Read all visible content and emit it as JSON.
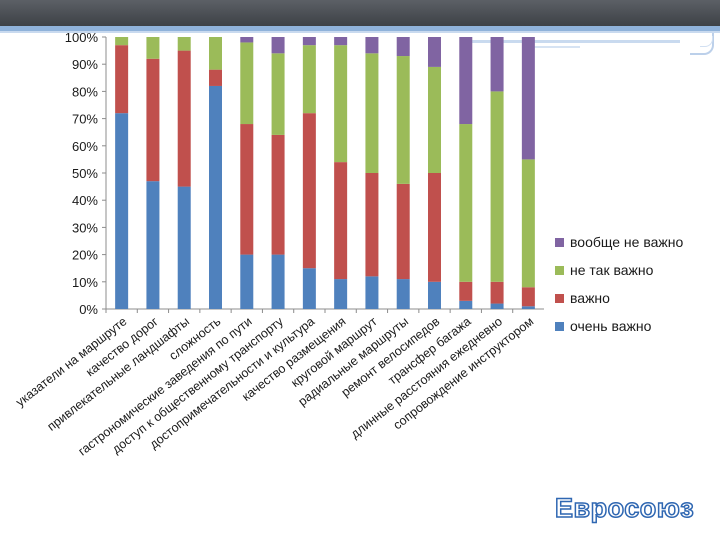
{
  "chart_data": {
    "type": "bar",
    "stacked": true,
    "ylim": [
      0,
      100
    ],
    "yticks": [
      "0%",
      "10%",
      "20%",
      "30%",
      "40%",
      "50%",
      "60%",
      "70%",
      "80%",
      "90%",
      "100%"
    ],
    "categories": [
      "указатели на маршруте",
      "качество дорог",
      "привлекательные ландшафты",
      "сложность",
      "гастрономические заведения по пути",
      "доступ к общественному транспорту",
      "достопримечательности и культура",
      "качество размещения",
      "круговой маршрут",
      "радиальные маршруты",
      "ремонт велосипедов",
      "трансфер багажа",
      "длинные расстояния ежедневно",
      "сопровождение инструктором"
    ],
    "series": [
      {
        "name": "очень важно",
        "color": "#4f81bd",
        "values": [
          72,
          47,
          45,
          82,
          20,
          20,
          15,
          11,
          12,
          11,
          10,
          3,
          2,
          1
        ]
      },
      {
        "name": "важно",
        "color": "#c0504d",
        "values": [
          25,
          45,
          50,
          6,
          48,
          44,
          57,
          43,
          38,
          35,
          40,
          7,
          8,
          7
        ]
      },
      {
        "name": "не так важно",
        "color": "#9bbb59",
        "values": [
          3,
          8,
          5,
          12,
          30,
          30,
          25,
          43,
          44,
          47,
          39,
          58,
          70,
          47
        ]
      },
      {
        "name": "вообще не важно",
        "color": "#8064a2",
        "values": [
          0,
          0,
          0,
          0,
          2,
          6,
          3,
          3,
          6,
          7,
          11,
          32,
          20,
          45
        ]
      }
    ],
    "legend_position": "right",
    "grid": false
  },
  "brand": {
    "text": "Евросоюз"
  }
}
